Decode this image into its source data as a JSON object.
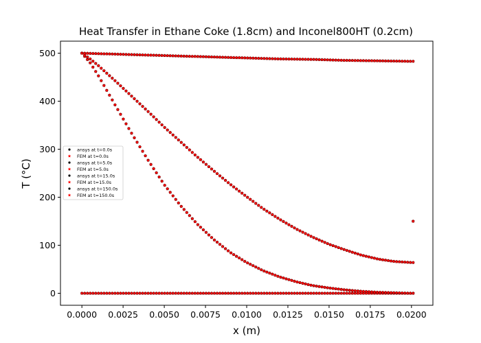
{
  "chart_data": {
    "type": "scatter",
    "title": "Heat Transfer in Ethane Coke (1.8cm) and Inconel800HT (0.2cm)",
    "xlabel": "x (m)",
    "ylabel": "T (°C)",
    "xlim": [
      -0.0013,
      0.0213
    ],
    "ylim": [
      -25,
      525
    ],
    "xticks": [
      0.0,
      0.0025,
      0.005,
      0.0075,
      0.01,
      0.0125,
      0.015,
      0.0175,
      0.02
    ],
    "xtick_labels": [
      "0.0000",
      "0.0025",
      "0.0050",
      "0.0075",
      "0.0100",
      "0.0125",
      "0.0150",
      "0.0175",
      "0.0200"
    ],
    "yticks": [
      0,
      100,
      200,
      300,
      400,
      500
    ],
    "ytick_labels": [
      "0",
      "100",
      "200",
      "300",
      "400",
      "500"
    ],
    "grid": false,
    "legend_position": "center-left",
    "colors": {
      "ansys": "#000000",
      "fem": "#ff0000"
    },
    "series": [
      {
        "name": "ansys at t=0.0s",
        "marker": "dot",
        "color": "#000000",
        "time": 0.0
      },
      {
        "name": "FEM at t=0.0s",
        "marker": "star",
        "color": "#ff0000",
        "time": 0.0
      },
      {
        "name": "ansys at t=5.0s",
        "marker": "dot",
        "color": "#000000",
        "time": 5.0
      },
      {
        "name": "FEM at t=5.0s",
        "marker": "star",
        "color": "#ff0000",
        "time": 5.0
      },
      {
        "name": "ansys at t=15.0s",
        "marker": "dot",
        "color": "#000000",
        "time": 15.0
      },
      {
        "name": "FEM at t=15.0s",
        "marker": "star",
        "color": "#ff0000",
        "time": 15.0
      },
      {
        "name": "ansys at t=150.0s",
        "marker": "dot",
        "color": "#000000",
        "time": 150.0
      },
      {
        "name": "FEM at t=150.0s",
        "marker": "star",
        "color": "#ff0000",
        "time": 150.0
      }
    ],
    "profiles": [
      {
        "time": 0.0,
        "x": [
          0.0,
          0.002,
          0.004,
          0.006,
          0.008,
          0.01,
          0.012,
          0.014,
          0.016,
          0.018,
          0.02
        ],
        "y": [
          0,
          0,
          0,
          0,
          0,
          0,
          0,
          0,
          0,
          0,
          0
        ]
      },
      {
        "time": 5.0,
        "x": [
          0.0,
          0.0005,
          0.001,
          0.002,
          0.003,
          0.004,
          0.005,
          0.006,
          0.007,
          0.008,
          0.009,
          0.01,
          0.011,
          0.012,
          0.013,
          0.014,
          0.015,
          0.016,
          0.017,
          0.018,
          0.019,
          0.02
        ],
        "y": [
          500,
          480,
          453,
          393,
          334,
          278,
          226,
          182,
          144,
          112,
          85,
          64,
          47,
          34,
          24,
          16,
          11,
          7,
          4,
          2,
          1,
          0
        ]
      },
      {
        "time": 15.0,
        "x": [
          0.0,
          0.0005,
          0.001,
          0.002,
          0.003,
          0.004,
          0.005,
          0.006,
          0.007,
          0.008,
          0.009,
          0.01,
          0.011,
          0.012,
          0.013,
          0.014,
          0.015,
          0.016,
          0.017,
          0.018,
          0.019,
          0.02
        ],
        "y": [
          500,
          488,
          474,
          443,
          411,
          379,
          346,
          315,
          284,
          255,
          227,
          201,
          176,
          154,
          134,
          117,
          102,
          90,
          79,
          71,
          66,
          64
        ]
      },
      {
        "time": 150.0,
        "x": [
          0.0,
          0.002,
          0.004,
          0.006,
          0.008,
          0.01,
          0.012,
          0.014,
          0.016,
          0.018,
          0.02
        ],
        "y": [
          500,
          498,
          496,
          494,
          492,
          490,
          488,
          487,
          485,
          484,
          483
        ]
      }
    ],
    "extra_points": [
      {
        "x": 0.0201,
        "y": 150
      }
    ]
  }
}
